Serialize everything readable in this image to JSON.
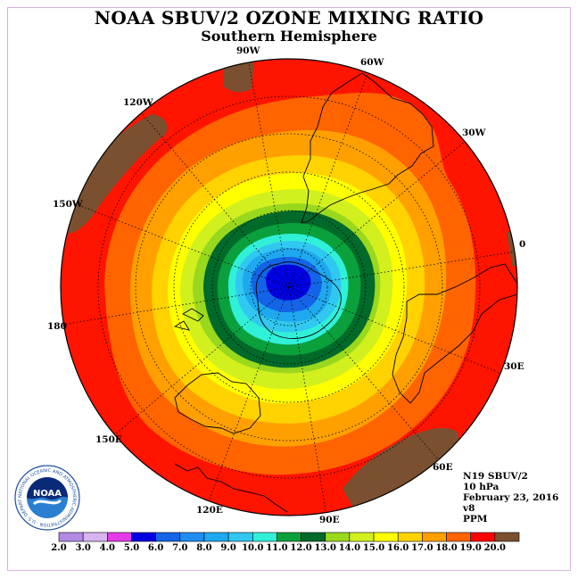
{
  "header": {
    "title": "NOAA SBUV/2 OZONE MIXING RATIO",
    "subtitle": "Southern Hemisphere"
  },
  "longitudes": {
    "lon_90w": "90W",
    "lon_60w": "60W",
    "lon_30w": "30W",
    "lon_0": "0",
    "lon_30e": "30E",
    "lon_60e": "60E",
    "lon_90e": "90E",
    "lon_120e": "120E",
    "lon_150e": "150E",
    "lon_180": "180",
    "lon_150w": "150W",
    "lon_120w": "120W"
  },
  "info": {
    "instrument": "N19 SBUV/2",
    "pressure": "10 hPa",
    "date": "February 23, 2016",
    "version": "v8",
    "units": "PPM"
  },
  "logo": {
    "text": "NOAA",
    "ring_text": "NATIONAL OCEANIC AND ATMOSPHERIC ADMINISTRATION · U.S. DEPARTMENT OF COMMERCE"
  },
  "colorbar": {
    "ticks": [
      "2.0",
      "3.0",
      "4.0",
      "5.0",
      "6.0",
      "7.0",
      "8.0",
      "9.0",
      "10.0",
      "11.0",
      "12.0",
      "13.0",
      "14.0",
      "15.0",
      "16.0",
      "17.0",
      "18.0",
      "19.0",
      "20.0"
    ],
    "colors": [
      "#b38ae6",
      "#d8b4f0",
      "#e43ce8",
      "#0000e0",
      "#1464e8",
      "#1e8cf0",
      "#1ea8f0",
      "#30c8f0",
      "#30f0d8",
      "#0aa03c",
      "#006a2a",
      "#9ad81e",
      "#d2f01e",
      "#ffff00",
      "#ffd200",
      "#ffa000",
      "#ff6400",
      "#ff0000",
      "#7a5030"
    ]
  },
  "map_colors": {
    "brown": "#7a5030",
    "red": "#ff1400",
    "orange_red": "#ff6400",
    "orange": "#ffa000",
    "yellow_orange": "#ffd200",
    "yellow": "#ffff00",
    "yellow_green": "#d2f01e",
    "light_green": "#9ad81e",
    "dark_green": "#006a2a",
    "green": "#0aa03c",
    "cyan": "#30f0d8",
    "light_blue": "#30c8f0",
    "blue1": "#1ea8f0",
    "blue2": "#1464e8",
    "deep_blue": "#0000e0"
  }
}
